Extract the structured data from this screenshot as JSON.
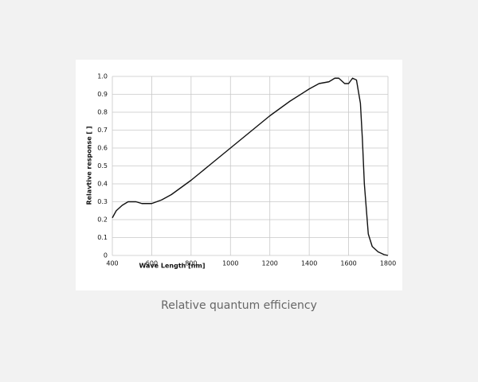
{
  "chart_data": {
    "type": "line",
    "caption": "Relative quantum efficiency",
    "x_label": "Wave Length [nm]",
    "y_label": "Relavtive response [ ]",
    "x": [
      400,
      420,
      450,
      480,
      500,
      520,
      550,
      600,
      650,
      700,
      800,
      900,
      1000,
      1100,
      1200,
      1300,
      1400,
      1450,
      1500,
      1530,
      1550,
      1580,
      1600,
      1620,
      1640,
      1660,
      1670,
      1680,
      1700,
      1720,
      1750,
      1780,
      1800
    ],
    "series": [
      {
        "color": "#111111",
        "values": [
          0.21,
          0.25,
          0.28,
          0.3,
          0.3,
          0.3,
          0.29,
          0.29,
          0.31,
          0.34,
          0.42,
          0.51,
          0.6,
          0.69,
          0.78,
          0.86,
          0.93,
          0.96,
          0.97,
          0.99,
          0.99,
          0.96,
          0.96,
          0.99,
          0.98,
          0.85,
          0.65,
          0.4,
          0.12,
          0.05,
          0.02,
          0.005,
          0
        ]
      }
    ],
    "xlim": [
      400,
      1800
    ],
    "xticks": [
      400,
      600,
      800,
      1000,
      1200,
      1400,
      1600,
      1800
    ],
    "ylim": [
      0,
      1
    ],
    "yticks": [
      0,
      0.1,
      0.2,
      0.3,
      0.4,
      0.5,
      0.6,
      0.7,
      0.8,
      0.9,
      {
        "value": 1,
        "label": "1.0"
      }
    ],
    "grid": true
  }
}
